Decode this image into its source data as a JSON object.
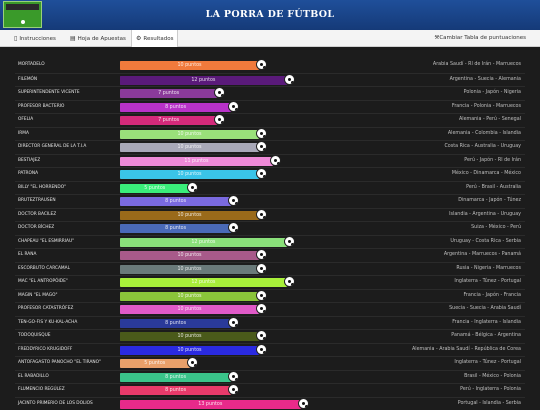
{
  "header": {
    "title": "LA PORRA DE FÚTBOL"
  },
  "nav": {
    "tabs": [
      {
        "label": "Instrucciones",
        "icon": "book-icon",
        "glyph": "▯"
      },
      {
        "label": "Hoja de Apuestas",
        "icon": "sheet-icon",
        "glyph": "▤"
      },
      {
        "label": "Resultados",
        "icon": "gear-icon",
        "glyph": "⚙",
        "active": true
      }
    ],
    "right_link": {
      "label": "Cambiar Tabla de puntuaciones",
      "icon": "wrench-icon",
      "glyph": "⚒"
    }
  },
  "rows": [
    {
      "name": "MORTADELO",
      "points": "10 puntos",
      "score": 10,
      "color": "#f07a3c",
      "teams": "Arabia Saudí - Rl de Irán - Marruecos"
    },
    {
      "name": "FILEMÓN",
      "points": "12 puntos",
      "score": 12,
      "color": "#5a1a7a",
      "teams": "Argentina - Suecia - Alemania"
    },
    {
      "name": "SUPERINTENDENTE VICENTE",
      "points": "7 puntos",
      "score": 7,
      "color": "#8a3a9a",
      "teams": "Polonia - Japón - Nigeria"
    },
    {
      "name": "PROFESOR BACTERIO",
      "points": "8 puntos",
      "score": 8,
      "color": "#b832c8",
      "teams": "Francia - Polonia - Marruecos"
    },
    {
      "name": "OFELIA",
      "points": "7 puntos",
      "score": 7,
      "color": "#d42a7a",
      "teams": "Alemania - Perú - Senegal"
    },
    {
      "name": "IRMA",
      "points": "10 puntos",
      "score": 10,
      "color": "#9ae07a",
      "teams": "Alemania - Colombia - Islandia"
    },
    {
      "name": "DIRECTOR GENERAL DE LA T.I.A",
      "points": "10 puntos",
      "score": 10,
      "color": "#a8a8b8",
      "teams": "Costa Rica - Australia - Uruguay"
    },
    {
      "name": "BESTIAJEZ",
      "points": "11 puntos",
      "score": 11,
      "color": "#ee8ad8",
      "teams": "Perú - Japón - Rl de Irán"
    },
    {
      "name": "PATRONA",
      "points": "10 puntos",
      "score": 10,
      "color": "#3ac4e8",
      "teams": "México - Dinamarca - México"
    },
    {
      "name": "BILLY \"EL HORRENDO\"",
      "points": "5 puntos",
      "score": 5,
      "color": "#3aee7a",
      "teams": "Perú - Brasil - Australia"
    },
    {
      "name": "BRUTEZTRAUSEN",
      "points": "8 puntos",
      "score": 8,
      "color": "#7a6ae0",
      "teams": "Dinamarca - Japón - Túnez"
    },
    {
      "name": "DOCTOR BACILEZ",
      "points": "10 puntos",
      "score": 10,
      "color": "#9a6a1a",
      "teams": "Islandia - Argentina - Uruguay"
    },
    {
      "name": "DOCTOR BÍCHEZ",
      "points": "8 puntos",
      "score": 8,
      "color": "#4a6ab8",
      "teams": "Suiza - México - Perú"
    },
    {
      "name": "CHAPEAU \"EL ESMIRRIAU\"",
      "points": "12 puntos",
      "score": 12,
      "color": "#8ae07a",
      "teams": "Uruguay - Costa Rica - Serbia"
    },
    {
      "name": "EL RANA",
      "points": "10 puntos",
      "score": 10,
      "color": "#a85a8a",
      "teams": "Argentina - Marruecos - Panamá"
    },
    {
      "name": "ESCORBUTO CARCAMAL",
      "points": "10 puntos",
      "score": 10,
      "color": "#6a7a7a",
      "teams": "Rusia - Nigeria - Marruecos"
    },
    {
      "name": "MAC \"EL ANTROPÓIDE\"",
      "points": "12 puntos",
      "score": 12,
      "color": "#a8f03a",
      "teams": "Inglaterra - Túnez - Portugal"
    },
    {
      "name": "MAGIN \"EL MAGO\"",
      "points": "10 puntos",
      "score": 10,
      "color": "#8ac43a",
      "teams": "Francia - Japón - Francia"
    },
    {
      "name": "PROFESOR CATASTRÓFEZ",
      "points": "10 puntos",
      "score": 10,
      "color": "#e05ac8",
      "teams": "Suecia - Suecia - Arabia Saudí"
    },
    {
      "name": "TEN-GO-FIS Y KU-KAL-ACHA",
      "points": "8 puntos",
      "score": 8,
      "color": "#2a3a9a",
      "teams": "Francia - Inglaterra - Islandia"
    },
    {
      "name": "TODOQUISQUE",
      "points": "10 puntos",
      "score": 10,
      "color": "#4a5a1a",
      "teams": "Panamá - Bélgica - Argentina"
    },
    {
      "name": "FREDDYRICO KRUGIDOFF",
      "points": "10 puntos",
      "score": 10,
      "color": "#2a2ae0",
      "teams": "Alemania - Arabia Saudí - República de Corea"
    },
    {
      "name": "ANTOFAGASTO PANOCHO \"EL TIRANO\"",
      "points": "5 puntos",
      "score": 5,
      "color": "#e8a06a",
      "teams": "Inglaterra - Túnez - Portugal"
    },
    {
      "name": "EL RABADILLO",
      "points": "8 puntos",
      "score": 8,
      "color": "#3ac48a",
      "teams": "Brasil - México - Polonia"
    },
    {
      "name": "FLUMENCIO REGÚLEZ",
      "points": "8 puntos",
      "score": 8,
      "color": "#e83a6a",
      "teams": "Perú - Inglaterra - Polonia"
    },
    {
      "name": "JACINTO PRIMERIO DE LOS DOLIOS",
      "points": "13 puntos",
      "score": 13,
      "color": "#e82a8a",
      "teams": "Portugal - Islandia - Serbia"
    }
  ]
}
